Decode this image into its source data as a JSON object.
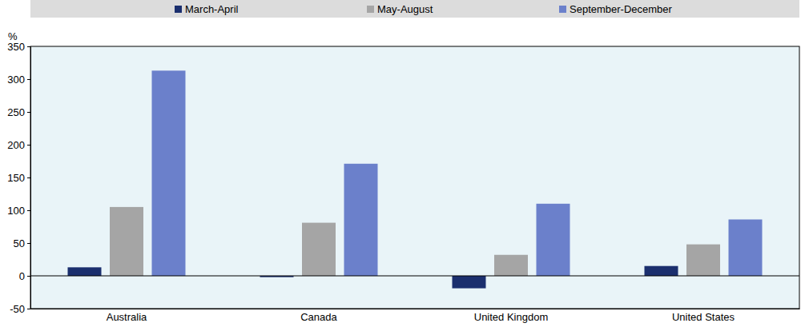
{
  "chart_data": {
    "type": "bar",
    "y_label": "%",
    "categories": [
      "Australia",
      "Canada",
      "United Kingdom",
      "United States"
    ],
    "series": [
      {
        "name": "March-April",
        "color": "#1b2f6e",
        "values": [
          13,
          -2,
          -19,
          15
        ]
      },
      {
        "name": "May-August",
        "color": "#a5a5a5",
        "values": [
          105,
          81,
          32,
          48
        ]
      },
      {
        "name": "September-December",
        "color": "#6b80cb",
        "values": [
          313,
          171,
          110,
          86
        ]
      }
    ],
    "ylim": [
      -50,
      350
    ],
    "yticks": [
      -50,
      0,
      50,
      100,
      150,
      200,
      250,
      300,
      350
    ],
    "grid": false,
    "legend": "top"
  }
}
